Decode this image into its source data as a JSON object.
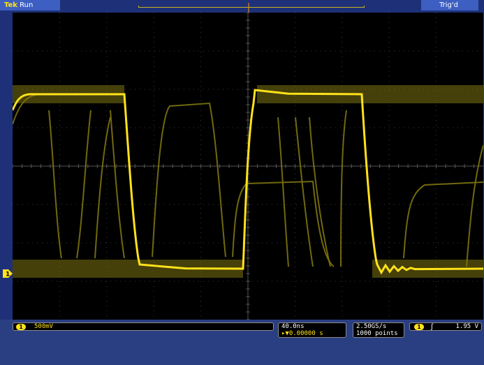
{
  "status": {
    "brand": "Tek",
    "acquisition": "Run",
    "trigger_state": "Trig'd"
  },
  "channel1": {
    "number": "1",
    "vertical_scale": "500mV",
    "trace_color": "#ffe21a"
  },
  "horizontal": {
    "timebase": "40.0ns",
    "delay_prefix": "▸▼",
    "delay": "0.00000 s",
    "sample_rate": "2.50GS/s",
    "record_length": "1000 points"
  },
  "trigger": {
    "source": "1",
    "slope_symbol": "ʃ",
    "level": "1.95 V"
  },
  "icons": {
    "trigger_position": "trigger-position-marker-icon",
    "ground_marker": "channel-ground-marker-icon",
    "rising_edge": "rising-edge-icon"
  },
  "colors": {
    "screen_bg": "#000000",
    "bezel": "#2a3e82",
    "status_tab": "#3d5fc2",
    "trace": "#ffe21a",
    "persistence": "#7d7410"
  }
}
